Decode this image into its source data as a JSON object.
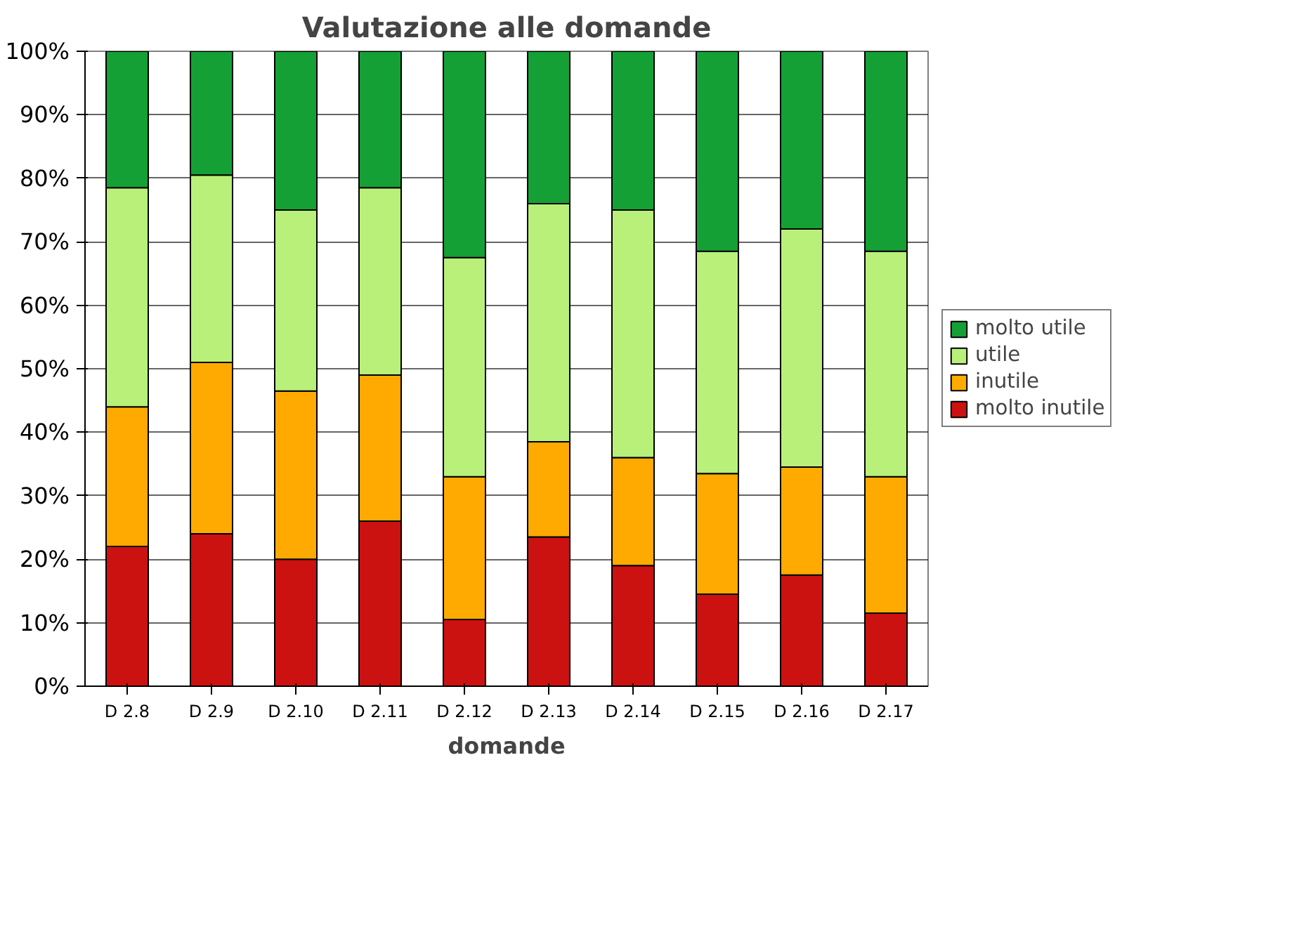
{
  "chart_data": {
    "type": "bar",
    "stacked": true,
    "title": "Valutazione alle domande",
    "xlabel": "domande",
    "categories": [
      "D 2.8",
      "D 2.9",
      "D 2.10",
      "D 2.11",
      "D 2.12",
      "D 2.13",
      "D 2.14",
      "D 2.15",
      "D 2.16",
      "D 2.17"
    ],
    "series": [
      {
        "name": "molto inutile",
        "color": "#cc1111",
        "values": [
          22,
          24,
          20,
          26,
          10.5,
          23.5,
          19,
          14.5,
          17.5,
          11.5
        ]
      },
      {
        "name": "inutile",
        "color": "#ffaa00",
        "values": [
          22,
          27,
          26.5,
          23,
          22.5,
          15,
          17,
          19,
          17,
          21.5
        ]
      },
      {
        "name": "utile",
        "color": "#b8f07a",
        "values": [
          34.5,
          29.5,
          28.5,
          29.5,
          34.5,
          37.5,
          39,
          35,
          37.5,
          35.5
        ]
      },
      {
        "name": "molto utile",
        "color": "#15a035",
        "values": [
          21.5,
          19.5,
          25,
          21.5,
          32.5,
          24,
          25,
          31.5,
          28,
          31.5
        ]
      }
    ],
    "ylim": [
      0,
      100
    ],
    "yticks": [
      {
        "value": 0,
        "label": "0%"
      },
      {
        "value": 10,
        "label": "10%"
      },
      {
        "value": 20,
        "label": "20%"
      },
      {
        "value": 30,
        "label": "30%"
      },
      {
        "value": 40,
        "label": "40%"
      },
      {
        "value": 50,
        "label": "50%"
      },
      {
        "value": 60,
        "label": "60%"
      },
      {
        "value": 70,
        "label": "70%"
      },
      {
        "value": 80,
        "label": "80%"
      },
      {
        "value": 90,
        "label": "90%"
      },
      {
        "value": 100,
        "label": "100%"
      }
    ],
    "grid": "y",
    "legend": "right"
  }
}
